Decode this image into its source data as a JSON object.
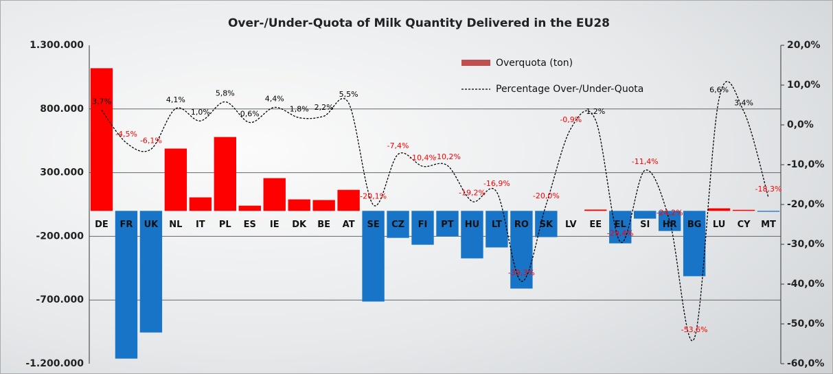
{
  "chart_data": {
    "type": "combo",
    "title": "Over-/Under-Quota of Milk Quantity Delivered in the EU28",
    "categories": [
      "DE",
      "FR",
      "UK",
      "NL",
      "IT",
      "PL",
      "ES",
      "IE",
      "DK",
      "BE",
      "AT",
      "SE",
      "CZ",
      "FI",
      "PT",
      "HU",
      "LT",
      "RO",
      "SK",
      "LV",
      "EE",
      "EL",
      "SI",
      "HR",
      "BG",
      "LU",
      "CY",
      "MT"
    ],
    "series": [
      {
        "name": "Overquota (ton)",
        "type": "bar",
        "color": "#ff0000",
        "negative_color": "#1874c6",
        "legend_color": "#c0504d",
        "values": [
          1120000,
          -1160000,
          -955000,
          489000,
          106000,
          580000,
          41000,
          257000,
          90000,
          85000,
          165000,
          -712000,
          -212000,
          -266000,
          -200000,
          -373000,
          -287000,
          -610000,
          -206000,
          0,
          10000,
          -255000,
          -61000,
          -158000,
          -513000,
          20000,
          8000,
          -7000
        ]
      },
      {
        "name": "Percentage Over-/Under-Quota",
        "type": "line",
        "axis": "y2",
        "color": "#000000",
        "dashed": true,
        "positive_label_color": "#000000",
        "negative_label_color": "#ff0000",
        "values": [
          3.7,
          -4.5,
          -6.1,
          4.1,
          1.0,
          5.8,
          0.6,
          4.4,
          1.8,
          2.2,
          5.5,
          -20.1,
          -7.4,
          -10.4,
          -10.2,
          -19.2,
          -16.9,
          -39.3,
          -20.0,
          -0.9,
          1.2,
          -29.4,
          -11.4,
          -24.2,
          -53.6,
          6.6,
          3.4,
          -18.3
        ],
        "value_labels": [
          "3,7%",
          "-4,5%",
          "-6,1%",
          "4,1%",
          "1,0%",
          "5,8%",
          "0,6%",
          "4,4%",
          "1,8%",
          "2,2%",
          "5,5%",
          "-20,1%",
          "-7,4%",
          "-10,4%",
          "-10,2%",
          "-19,2%",
          "-16,9%",
          "-39,3%",
          "-20,0%",
          "-0,9%",
          "1,2%",
          "-29,4%",
          "-11,4%",
          "-24,2%",
          "-53,6%",
          "6,6%",
          "3,4%",
          "-18,3%"
        ]
      }
    ],
    "ylim": [
      -1200000,
      1300000
    ],
    "yticks": [
      {
        "value": 1300000,
        "label": "1.300.000"
      },
      {
        "value": 800000,
        "label": "800.000"
      },
      {
        "value": 300000,
        "label": "300.000"
      },
      {
        "value": -200000,
        "label": "-200.000"
      },
      {
        "value": -700000,
        "label": "-700.000"
      },
      {
        "value": -1200000,
        "label": "-1.200.000"
      }
    ],
    "y2lim": [
      -60,
      20
    ],
    "y2ticks": [
      {
        "value": 20,
        "label": "20,0%"
      },
      {
        "value": 10,
        "label": "10,0%"
      },
      {
        "value": 0,
        "label": "0,0%"
      },
      {
        "value": -10,
        "label": "-10,0%"
      },
      {
        "value": -20,
        "label": "-20,0%"
      },
      {
        "value": -30,
        "label": "-30,0%"
      },
      {
        "value": -40,
        "label": "-40,0%"
      },
      {
        "value": -50,
        "label": "-50,0%"
      },
      {
        "value": -60,
        "label": "-60,0%"
      }
    ],
    "grid": true,
    "legend": "top-right"
  }
}
